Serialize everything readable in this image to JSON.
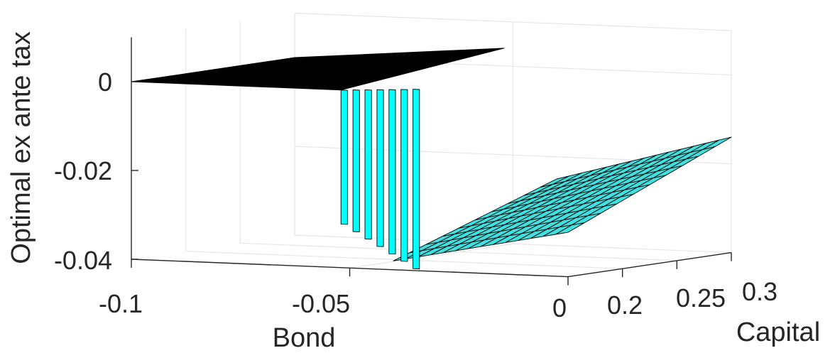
{
  "chart_data": {
    "type": "surface",
    "xlabel": "Bond",
    "ylabel": "Capital",
    "zlabel": "Optimal ex ante tax",
    "x_ticks": [
      "-0.1",
      "-0.05",
      "0"
    ],
    "y_ticks": [
      "0.2",
      "0.25",
      "0.3"
    ],
    "z_ticks": [
      "0",
      "-0.02",
      "-0.04"
    ],
    "xlim": [
      -0.1,
      0
    ],
    "ylim": [
      0.15,
      0.3
    ],
    "zlim": [
      -0.04,
      0.01
    ],
    "grid": true,
    "colors": {
      "upper_plateau": "#000000",
      "drop_faces": "#00ffff",
      "lower_surface": "#40e0e0",
      "edges": "#000000"
    },
    "surface": {
      "upper_region": {
        "bond_range": [
          -0.1,
          -0.052
        ],
        "tax": 0.0
      },
      "drop_bond_range": [
        -0.052,
        -0.04
      ],
      "lower_region": {
        "bond_range": [
          -0.04,
          0
        ],
        "tax_at_min_capital": -0.038,
        "tax_at_max_capital_near_drop": -0.025,
        "tax_at_max_capital_bond0": -0.014,
        "tax_at_min_capital_bond0": -0.03
      }
    }
  }
}
